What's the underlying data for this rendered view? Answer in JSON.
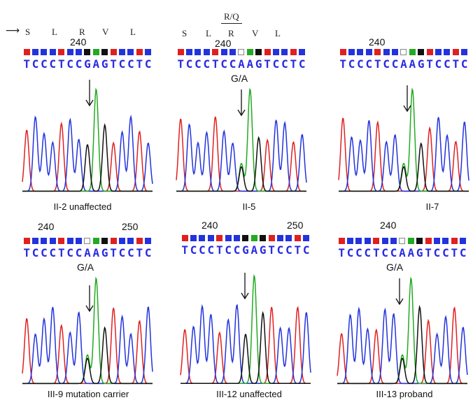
{
  "amino_acids_left": [
    "S",
    "L",
    "R",
    "V",
    "L"
  ],
  "amino_acids_mid": [
    "S",
    "L",
    "R",
    "V",
    "L"
  ],
  "substitution_label": "R/Q",
  "colors": {
    "A": "#22aa22",
    "C": "#2233dd",
    "G": "#111111",
    "T": "#e02020",
    "N": "#ffffff"
  },
  "panels": [
    {
      "caption": "II-2 unaffected",
      "positions": [
        "240"
      ],
      "sequence": "TCCCTCCGAGTCCTC",
      "mutation_label": "",
      "genotype": "normal"
    },
    {
      "caption": "II-5",
      "positions": [
        "240"
      ],
      "sequence": "TCCCTCCAAGTCCTC",
      "mutation_label": "G/A",
      "genotype": "het"
    },
    {
      "caption": "II-7",
      "positions": [
        "240"
      ],
      "sequence": "TCCCTCCAAGTCCTC",
      "mutation_label": "",
      "genotype": "het"
    },
    {
      "caption": "III-9 mutation carrier",
      "positions": [
        "240",
        "250"
      ],
      "sequence": "TCCCTCCAAGTCCTC",
      "mutation_label": "G/A",
      "genotype": "het"
    },
    {
      "caption": "III-12 unaffected",
      "positions": [
        "240",
        "250"
      ],
      "sequence": "TCCCTCCGAGTCCTC",
      "mutation_label": "",
      "genotype": "normal"
    },
    {
      "caption": "III-13 proband",
      "positions": [
        "240"
      ],
      "sequence": "TCCCTCCAAGTCCTC",
      "mutation_label": "G/A",
      "genotype": "het"
    }
  ]
}
